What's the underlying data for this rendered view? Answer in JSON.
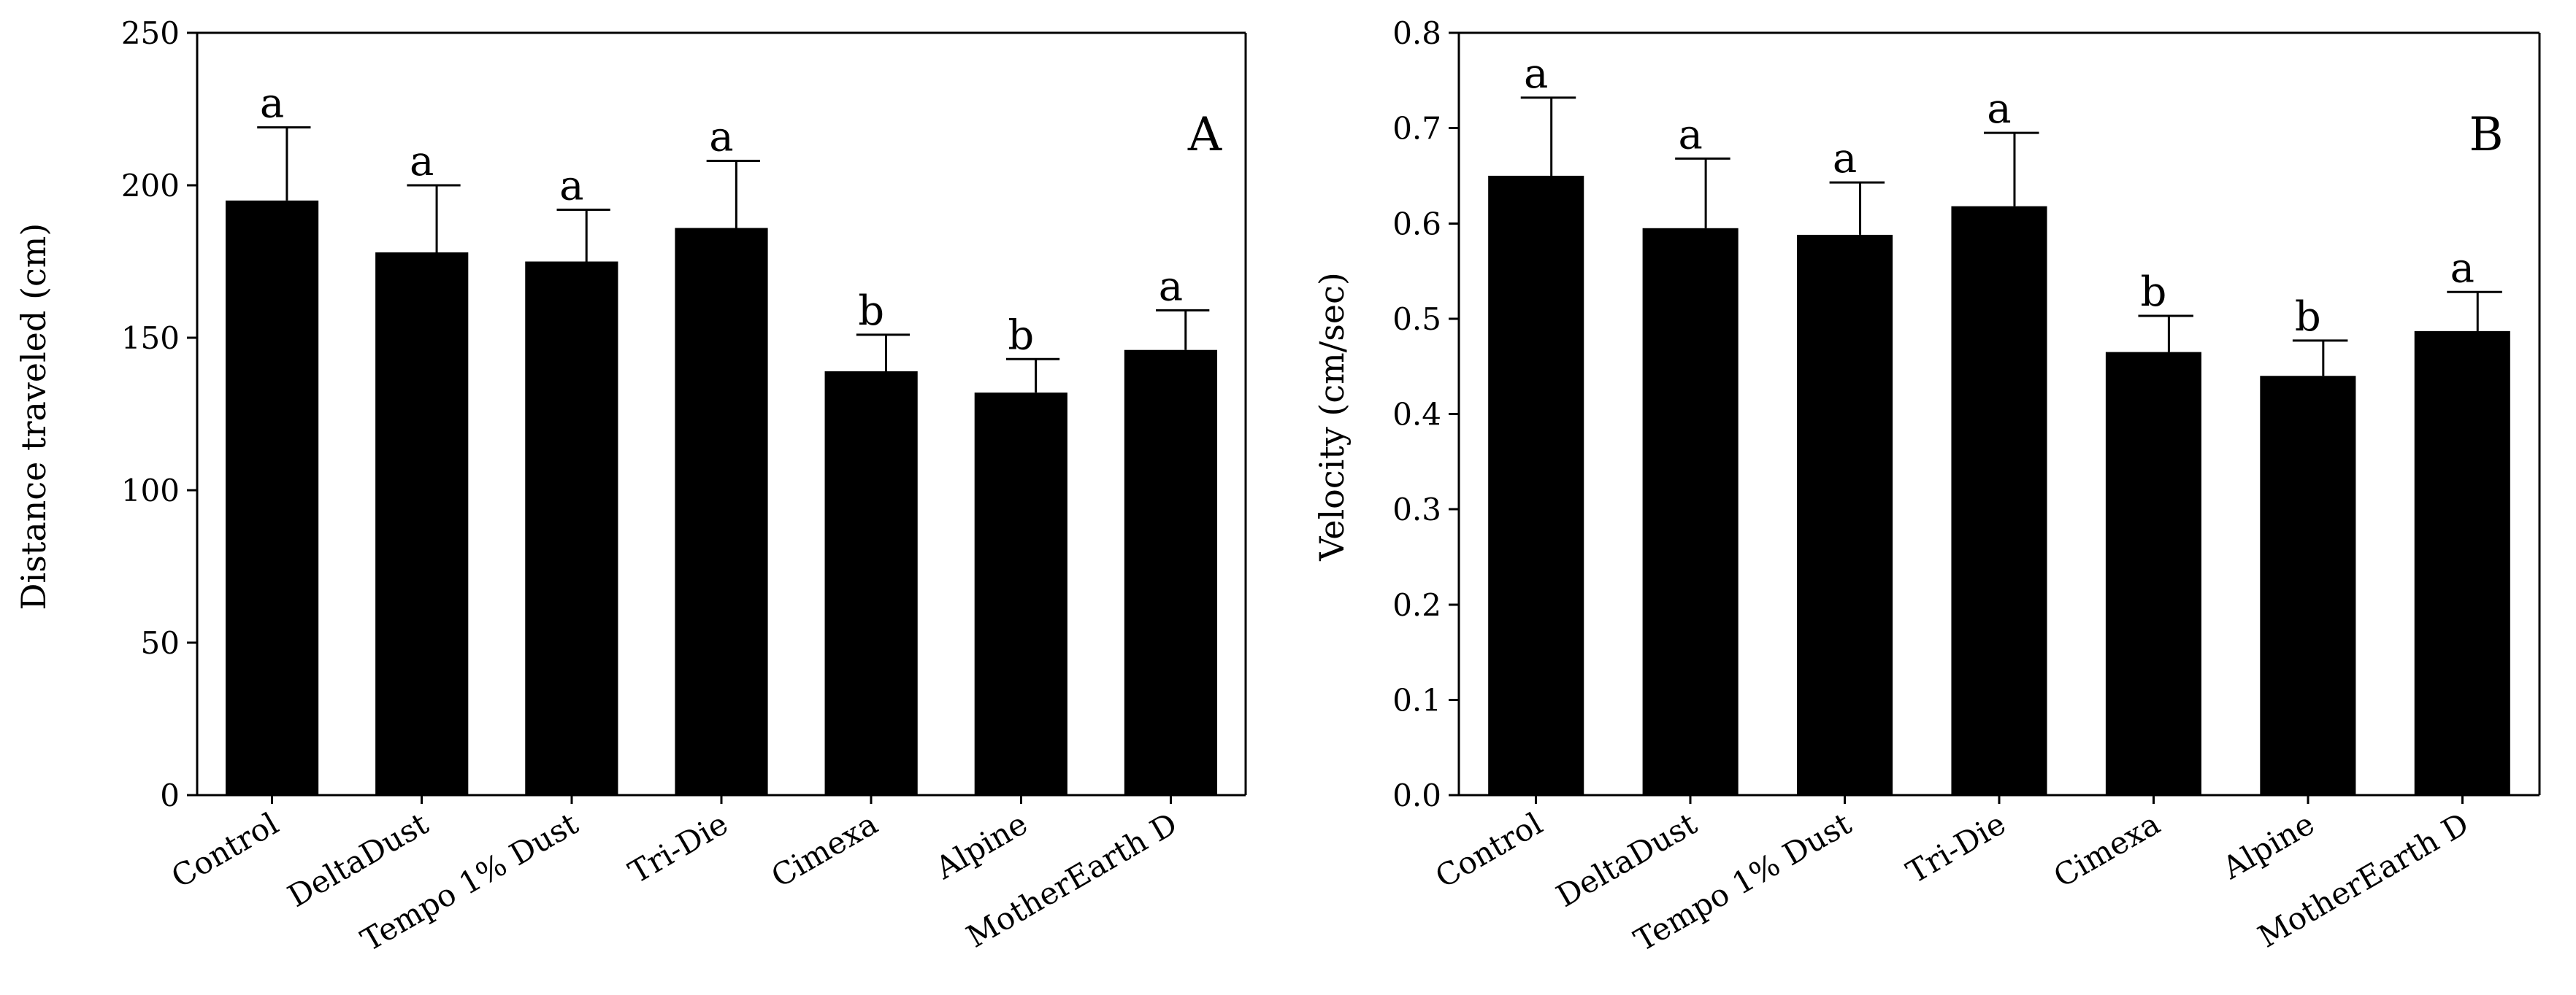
{
  "chart_data": [
    {
      "type": "bar",
      "panel_label": "A",
      "title": "",
      "xlabel": "",
      "ylabel": "Distance traveled (cm)",
      "ylim": [
        0,
        250
      ],
      "yticks": [
        0,
        50,
        100,
        150,
        200,
        250
      ],
      "categories": [
        "Control",
        "DeltaDust",
        "Tempo 1% Dust",
        "Tri-Die",
        "Cimexa",
        "Alpine",
        "MotherEarth D"
      ],
      "values": [
        195,
        178,
        175,
        186,
        139,
        132,
        146
      ],
      "error_upper": [
        219,
        200,
        192,
        208,
        151,
        143,
        159
      ],
      "significance": [
        "a",
        "a",
        "a",
        "a",
        "b",
        "b",
        "a"
      ],
      "grid": false
    },
    {
      "type": "bar",
      "panel_label": "B",
      "title": "",
      "xlabel": "",
      "ylabel": "Velocity (cm/sec)",
      "ylim": [
        0,
        0.8
      ],
      "yticks": [
        0.0,
        0.1,
        0.2,
        0.3,
        0.4,
        0.5,
        0.6,
        0.7,
        0.8
      ],
      "ytick_decimals": 1,
      "categories": [
        "Control",
        "DeltaDust",
        "Tempo 1% Dust",
        "Tri-Die",
        "Cimexa",
        "Alpine",
        "MotherEarth D"
      ],
      "values": [
        0.65,
        0.595,
        0.588,
        0.618,
        0.465,
        0.44,
        0.487
      ],
      "error_upper": [
        0.732,
        0.668,
        0.643,
        0.695,
        0.503,
        0.477,
        0.528
      ],
      "significance": [
        "a",
        "a",
        "a",
        "a",
        "b",
        "b",
        "a"
      ],
      "grid": false
    }
  ]
}
